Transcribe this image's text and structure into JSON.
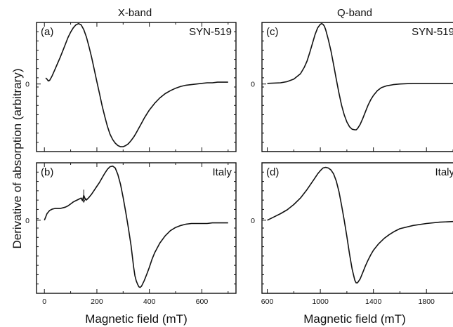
{
  "column_titles": [
    "X-band",
    "Q-band"
  ],
  "ylabel": "Derivative of absorption (arbitrary)",
  "xlabels": [
    "Magnetic field (mT)",
    "Magnetic field (mT)"
  ],
  "chart_data": [
    {
      "id": "a",
      "type": "line",
      "tag": "(a)",
      "sample": "SYN-519",
      "band": "X-band",
      "xlabel": "Magnetic field (mT)",
      "ylabel": "Derivative of absorption (arbitrary)",
      "xlim": [
        -30,
        730
      ],
      "ylim": [
        -1.12,
        1.02
      ],
      "xticks": [
        0,
        200,
        400,
        600
      ],
      "xtick_labels": [
        "",
        "",
        "",
        ""
      ],
      "ytick_zero_label": "0",
      "series": [
        {
          "x": [
            5,
            10,
            15,
            20,
            25,
            30,
            40,
            50,
            60,
            70,
            80,
            90,
            100,
            110,
            120,
            130,
            140,
            150,
            160,
            170,
            180,
            190,
            200,
            210,
            220,
            230,
            240,
            250,
            260,
            270,
            280,
            290,
            300,
            310,
            320,
            330,
            340,
            350,
            360,
            370,
            380,
            390,
            400,
            420,
            440,
            460,
            480,
            500,
            520,
            540,
            560,
            580,
            600,
            620,
            640,
            660,
            680,
            700
          ],
          "y": [
            0.1,
            0.08,
            0.05,
            0.06,
            0.1,
            0.14,
            0.24,
            0.34,
            0.44,
            0.55,
            0.66,
            0.77,
            0.86,
            0.93,
            0.98,
            1.0,
            0.98,
            0.9,
            0.78,
            0.62,
            0.44,
            0.24,
            0.04,
            -0.16,
            -0.36,
            -0.54,
            -0.7,
            -0.83,
            -0.92,
            -0.98,
            -1.02,
            -1.04,
            -1.04,
            -1.02,
            -0.99,
            -0.94,
            -0.88,
            -0.81,
            -0.73,
            -0.65,
            -0.57,
            -0.5,
            -0.43,
            -0.32,
            -0.23,
            -0.16,
            -0.11,
            -0.07,
            -0.04,
            -0.02,
            -0.01,
            0.0,
            0.01,
            0.02,
            0.02,
            0.03,
            0.03,
            0.03
          ]
        }
      ]
    },
    {
      "id": "b",
      "type": "line",
      "tag": "(b)",
      "sample": "Italy",
      "band": "X-band",
      "xlabel": "Magnetic field (mT)",
      "ylabel": "Derivative of absorption (arbitrary)",
      "xlim": [
        -30,
        730
      ],
      "ylim": [
        -1.12,
        0.88
      ],
      "xticks": [
        0,
        200,
        400,
        600
      ],
      "xtick_labels": [
        "0",
        "200",
        "400",
        "600"
      ],
      "ytick_zero_label": "0",
      "annotation": {
        "type": "arrow",
        "x": 150,
        "y": 0.21,
        "label": ""
      },
      "series": [
        {
          "x": [
            0,
            5,
            10,
            20,
            30,
            40,
            50,
            60,
            70,
            80,
            90,
            100,
            110,
            120,
            130,
            140,
            145,
            150,
            155,
            160,
            170,
            180,
            190,
            200,
            210,
            220,
            230,
            240,
            250,
            260,
            270,
            280,
            290,
            300,
            310,
            320,
            330,
            335,
            340,
            345,
            350,
            355,
            360,
            365,
            370,
            380,
            390,
            400,
            410,
            420,
            440,
            460,
            480,
            500,
            520,
            540,
            560,
            580,
            600,
            620,
            640,
            660,
            680,
            700
          ],
          "y": [
            0.0,
            0.05,
            0.1,
            0.15,
            0.17,
            0.18,
            0.18,
            0.18,
            0.19,
            0.2,
            0.22,
            0.25,
            0.28,
            0.3,
            0.32,
            0.34,
            0.3,
            0.38,
            0.33,
            0.31,
            0.35,
            0.4,
            0.46,
            0.52,
            0.58,
            0.65,
            0.72,
            0.78,
            0.82,
            0.83,
            0.8,
            0.7,
            0.55,
            0.35,
            0.12,
            -0.12,
            -0.38,
            -0.55,
            -0.72,
            -0.85,
            -0.93,
            -0.98,
            -1.02,
            -1.03,
            -1.01,
            -0.93,
            -0.83,
            -0.72,
            -0.6,
            -0.5,
            -0.35,
            -0.24,
            -0.16,
            -0.11,
            -0.08,
            -0.06,
            -0.05,
            -0.05,
            -0.05,
            -0.05,
            -0.04,
            -0.04,
            -0.04,
            -0.04
          ]
        }
      ]
    },
    {
      "id": "c",
      "type": "line",
      "tag": "(c)",
      "sample": "SYN-519",
      "band": "Q-band",
      "xlabel": "Magnetic field (mT)",
      "ylabel": "",
      "xlim": [
        560,
        2000
      ],
      "ylim": [
        -1.12,
        1.02
      ],
      "xticks": [
        600,
        1000,
        1400,
        1800
      ],
      "xtick_labels": [
        "",
        "",
        "",
        ""
      ],
      "ytick_zero_label": "0",
      "series": [
        {
          "x": [
            600,
            700,
            750,
            800,
            850,
            880,
            900,
            920,
            940,
            960,
            980,
            1000,
            1010,
            1020,
            1030,
            1040,
            1060,
            1080,
            1100,
            1120,
            1140,
            1160,
            1180,
            1200,
            1220,
            1240,
            1260,
            1270,
            1280,
            1300,
            1320,
            1340,
            1360,
            1380,
            1400,
            1430,
            1460,
            1500,
            1550,
            1600,
            1700,
            1800,
            1900,
            2000
          ],
          "y": [
            0.01,
            0.02,
            0.04,
            0.08,
            0.17,
            0.28,
            0.38,
            0.52,
            0.67,
            0.82,
            0.93,
            0.99,
            1.0,
            0.99,
            0.96,
            0.9,
            0.74,
            0.55,
            0.32,
            0.08,
            -0.15,
            -0.35,
            -0.51,
            -0.63,
            -0.71,
            -0.75,
            -0.76,
            -0.76,
            -0.74,
            -0.67,
            -0.57,
            -0.46,
            -0.35,
            -0.26,
            -0.19,
            -0.11,
            -0.06,
            -0.03,
            -0.01,
            0.0,
            0.01,
            0.01,
            0.01,
            0.01
          ]
        }
      ]
    },
    {
      "id": "d",
      "type": "line",
      "tag": "(d)",
      "sample": "Italy",
      "band": "Q-band",
      "xlabel": "Magnetic field (mT)",
      "ylabel": "",
      "xlim": [
        560,
        2000
      ],
      "ylim": [
        -1.12,
        0.88
      ],
      "xticks": [
        600,
        1000,
        1400,
        1800
      ],
      "xtick_labels": [
        "600",
        "1000",
        "1400",
        "1800"
      ],
      "ytick_zero_label": "0",
      "series": [
        {
          "x": [
            600,
            650,
            700,
            750,
            800,
            850,
            900,
            950,
            980,
            1000,
            1020,
            1040,
            1060,
            1080,
            1100,
            1120,
            1140,
            1160,
            1180,
            1200,
            1220,
            1240,
            1260,
            1270,
            1280,
            1300,
            1320,
            1340,
            1360,
            1380,
            1400,
            1440,
            1480,
            1520,
            1560,
            1600,
            1700,
            1800,
            1900,
            2000
          ],
          "y": [
            0.0,
            0.05,
            0.1,
            0.16,
            0.24,
            0.34,
            0.47,
            0.62,
            0.71,
            0.76,
            0.8,
            0.81,
            0.8,
            0.77,
            0.71,
            0.6,
            0.44,
            0.23,
            0.0,
            -0.25,
            -0.52,
            -0.75,
            -0.92,
            -0.96,
            -0.96,
            -0.9,
            -0.8,
            -0.7,
            -0.61,
            -0.53,
            -0.46,
            -0.36,
            -0.28,
            -0.22,
            -0.17,
            -0.13,
            -0.08,
            -0.05,
            -0.03,
            -0.02
          ]
        }
      ]
    }
  ]
}
